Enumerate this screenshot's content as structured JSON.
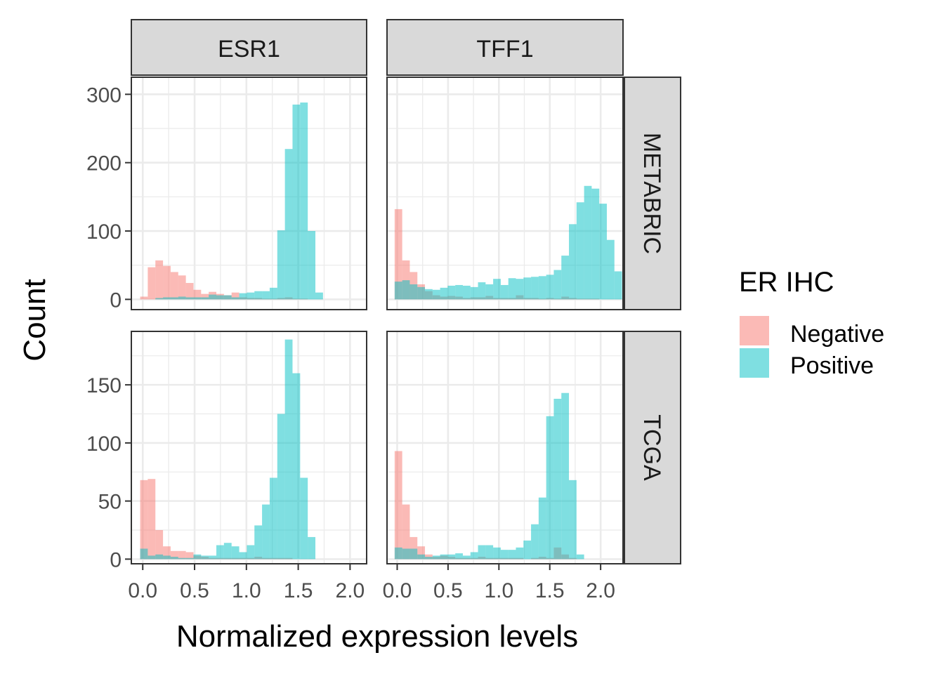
{
  "chart_data": {
    "type": "bar",
    "subtype": "faceted-histogram",
    "xlabel": "Normalized expression levels",
    "ylabel": "Count",
    "x_ticks": [
      0.0,
      0.5,
      1.0,
      1.5,
      2.0
    ],
    "x_tick_labels": [
      "0.0",
      "0.5",
      "1.0",
      "1.5",
      "2.0"
    ],
    "columns": [
      "ESR1",
      "TFF1"
    ],
    "rows": [
      "METABRIC",
      "TCGA"
    ],
    "legend": {
      "title": "ER IHC",
      "position": "right",
      "entries": [
        {
          "name": "Negative",
          "color": "#F8766D"
        },
        {
          "name": "Positive",
          "color": "#00BFC4"
        }
      ]
    },
    "fill_opacity": 0.5,
    "grid": true,
    "rows_meta": {
      "METABRIC": {
        "ylim": [
          -15,
          325
        ],
        "y_ticks": [
          0,
          100,
          200,
          300
        ],
        "y_tick_labels": [
          "0",
          "100",
          "200",
          "300"
        ]
      },
      "TCGA": {
        "ylim": [
          -4,
          196
        ],
        "y_ticks": [
          0,
          50,
          100,
          150
        ],
        "y_tick_labels": [
          "0",
          "50",
          "100",
          "150"
        ]
      }
    },
    "columns_meta": {
      "ESR1": {
        "xlim": [
          -0.11,
          2.16
        ],
        "bin_start": -0.025,
        "bin_width": 0.0735
      },
      "TFF1": {
        "xlim": [
          -0.1,
          2.22
        ],
        "bin_start": -0.025,
        "bin_width": 0.0745
      }
    },
    "panels": [
      {
        "row": "METABRIC",
        "column": "ESR1",
        "series": [
          {
            "name": "Negative",
            "values": [
              4,
              47,
              57,
              49,
              40,
              35,
              24,
              14,
              8,
              11,
              8,
              6,
              10,
              3,
              2,
              2,
              1,
              1,
              2,
              3,
              1,
              1,
              0,
              0
            ]
          },
          {
            "name": "Positive",
            "values": [
              0,
              0,
              2,
              3,
              3,
              4,
              3,
              3,
              3,
              7,
              6,
              6,
              3,
              9,
              10,
              12,
              12,
              17,
              101,
              220,
              285,
              288,
              100,
              10
            ]
          }
        ]
      },
      {
        "row": "METABRIC",
        "column": "TFF1",
        "series": [
          {
            "name": "Negative",
            "values": [
              132,
              57,
              40,
              22,
              12,
              6,
              4,
              5,
              4,
              2,
              3,
              3,
              5,
              2,
              2,
              2,
              6,
              2,
              2,
              1,
              2,
              1,
              4,
              2,
              1,
              1,
              1,
              0
            ]
          },
          {
            "name": "Positive",
            "values": [
              26,
              28,
              22,
              18,
              15,
              14,
              17,
              20,
              21,
              20,
              18,
              25,
              22,
              30,
              21,
              31,
              30,
              32,
              33,
              34,
              36,
              43,
              64,
              110,
              142,
              166,
              162,
              140,
              87,
              41
            ]
          }
        ]
      },
      {
        "row": "TCGA",
        "column": "ESR1",
        "series": [
          {
            "name": "Negative",
            "values": [
              68,
              69,
              25,
              11,
              7,
              7,
              6,
              3,
              2,
              1,
              1,
              1,
              1,
              1,
              1,
              2,
              1,
              1,
              1,
              1,
              0,
              0,
              0,
              0
            ]
          },
          {
            "name": "Positive",
            "values": [
              9,
              3,
              4,
              3,
              2,
              1,
              1,
              4,
              3,
              3,
              12,
              14,
              11,
              6,
              12,
              29,
              47,
              70,
              125,
              189,
              160,
              70,
              19,
              0
            ]
          }
        ]
      },
      {
        "row": "TCGA",
        "column": "TFF1",
        "series": [
          {
            "name": "Negative",
            "values": [
              93,
              47,
              19,
              11,
              4,
              2,
              3,
              2,
              1,
              1,
              1,
              2,
              1,
              1,
              1,
              1,
              1,
              0,
              1,
              2,
              1,
              10,
              4,
              1,
              0,
              0,
              0,
              0
            ]
          },
          {
            "name": "Positive",
            "values": [
              10,
              9,
              9,
              4,
              2,
              3,
              4,
              4,
              5,
              3,
              6,
              12,
              12,
              10,
              8,
              8,
              10,
              16,
              30,
              53,
              123,
              138,
              143,
              68,
              4,
              0,
              0,
              0
            ]
          }
        ]
      }
    ]
  }
}
